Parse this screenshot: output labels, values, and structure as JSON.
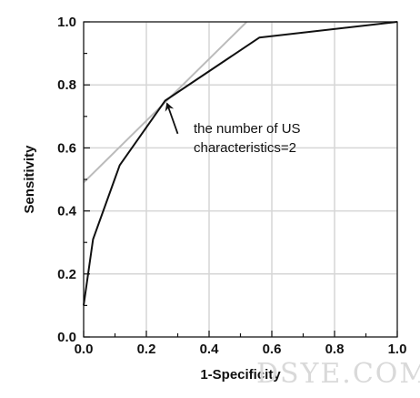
{
  "chart_data": {
    "type": "line",
    "title": "",
    "xlabel": "1-Specificity",
    "ylabel": "Sensitivity",
    "xlim": [
      0,
      1
    ],
    "ylim": [
      0,
      1
    ],
    "xticks": [
      0.0,
      0.2,
      0.4,
      0.6,
      0.8,
      1.0
    ],
    "yticks": [
      0.0,
      0.2,
      0.4,
      0.6,
      0.8,
      1.0
    ],
    "xtick_labels": [
      "0.0",
      "0.2",
      "0.4",
      "0.6",
      "0.8",
      "1.0"
    ],
    "ytick_labels": [
      "0.0",
      "0.2",
      "0.4",
      "0.6",
      "0.8",
      "1.0"
    ],
    "grid": true,
    "series": [
      {
        "color": "#111111",
        "x": [
          0.0,
          0.03,
          0.115,
          0.26,
          0.56,
          1.0
        ],
        "y": [
          0.1,
          0.31,
          0.545,
          0.75,
          0.95,
          1.0
        ]
      },
      {
        "color": "#bbbbbb",
        "x": [
          0.0,
          0.52
        ],
        "y": [
          0.49,
          1.0
        ]
      }
    ],
    "annotation": {
      "text_lines": [
        "the number of US",
        "characteristics=2"
      ],
      "point": [
        0.26,
        0.75
      ],
      "arrow_tail": [
        0.3,
        0.645
      ]
    }
  },
  "watermark": {
    "text": "DSYE.COM"
  }
}
